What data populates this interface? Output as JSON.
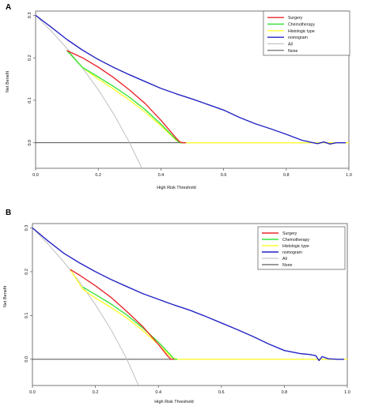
{
  "figure": {
    "colors": {
      "Surgery": "#e8272d",
      "Chemotherapy": "#39e33a",
      "Histologic type": "#ffff33",
      "nomogram": "#2424c4",
      "All": "#b9b9b9",
      "None": "#333333"
    }
  },
  "chart_data": [
    {
      "panel_label": "A",
      "type": "line",
      "xlabel": "High Risk Threshold",
      "ylabel": "Net Benefit",
      "xlim": [
        0,
        1
      ],
      "ylim": [
        -0.06,
        0.31
      ],
      "xticks": [
        "0.0",
        "0.2",
        "0.4",
        "0.6",
        "0.8",
        "1.0"
      ],
      "yticks": [
        "0.0",
        "0.1",
        "0.2",
        "0.3"
      ],
      "legend_position": "top-right",
      "grid": false,
      "series": [
        {
          "name": "Surgery",
          "color": "#e8272d",
          "x": [
            0.1,
            0.15,
            0.2,
            0.25,
            0.3,
            0.35,
            0.4,
            0.43,
            0.45,
            0.46,
            0.47,
            0.48
          ],
          "y": [
            0.217,
            0.2,
            0.178,
            0.153,
            0.124,
            0.092,
            0.053,
            0.027,
            0.01,
            0.002,
            0.0,
            0.0
          ]
        },
        {
          "name": "Chemotherapy",
          "color": "#39e33a",
          "x": [
            0.1,
            0.15,
            0.2,
            0.25,
            0.3,
            0.35,
            0.4,
            0.44,
            0.46,
            0.47,
            0.48
          ],
          "y": [
            0.217,
            0.177,
            0.155,
            0.132,
            0.107,
            0.078,
            0.044,
            0.014,
            0.0,
            0.0,
            0.0
          ]
        },
        {
          "name": "Histologic type",
          "color": "#ffff33",
          "x": [
            0.1,
            0.15,
            0.2,
            0.25,
            0.3,
            0.35,
            0.4,
            0.45,
            0.47,
            0.6,
            0.8,
            1.0
          ],
          "y": [
            0.217,
            0.177,
            0.15,
            0.126,
            0.1,
            0.072,
            0.04,
            0.005,
            0.0,
            0.0,
            0.0,
            0.0
          ]
        },
        {
          "name": "nomogram",
          "color": "#2424c4",
          "x": [
            0.0,
            0.05,
            0.1,
            0.15,
            0.2,
            0.25,
            0.3,
            0.35,
            0.4,
            0.45,
            0.5,
            0.55,
            0.6,
            0.65,
            0.7,
            0.75,
            0.8,
            0.85,
            0.88,
            0.9,
            0.92,
            0.94,
            0.96,
            0.99
          ],
          "y": [
            0.3,
            0.272,
            0.243,
            0.218,
            0.196,
            0.177,
            0.16,
            0.144,
            0.128,
            0.115,
            0.103,
            0.09,
            0.077,
            0.06,
            0.045,
            0.033,
            0.02,
            0.006,
            0.001,
            -0.002,
            0.002,
            -0.003,
            0.0,
            0.0
          ]
        },
        {
          "name": "All",
          "color": "#b9b9b9",
          "x": [
            0.0,
            0.05,
            0.1,
            0.15,
            0.2,
            0.25,
            0.3,
            0.35
          ],
          "y": [
            0.3,
            0.263,
            0.222,
            0.176,
            0.125,
            0.067,
            0.0,
            -0.077
          ]
        },
        {
          "name": "None",
          "color": "#333333",
          "x": [
            0.0,
            1.0
          ],
          "y": [
            0.0,
            0.0
          ]
        }
      ]
    },
    {
      "panel_label": "B",
      "type": "line",
      "xlabel": "High Risk Threshold",
      "ylabel": "Net Benefit",
      "xlim": [
        0,
        1
      ],
      "ylim": [
        -0.06,
        0.31
      ],
      "xticks": [
        "0.0",
        "0.2",
        "0.4",
        "0.6",
        "0.8",
        "1.0"
      ],
      "yticks": [
        "0.0",
        "0.1",
        "0.2",
        "0.3"
      ],
      "legend_position": "top-right",
      "grid": false,
      "series": [
        {
          "name": "Surgery",
          "color": "#e8272d",
          "x": [
            0.12,
            0.15,
            0.2,
            0.25,
            0.3,
            0.35,
            0.4,
            0.43,
            0.44,
            0.45
          ],
          "y": [
            0.205,
            0.192,
            0.168,
            0.141,
            0.109,
            0.075,
            0.034,
            0.007,
            0.0,
            0.0
          ]
        },
        {
          "name": "Chemotherapy",
          "color": "#39e33a",
          "x": [
            0.16,
            0.2,
            0.25,
            0.3,
            0.35,
            0.4,
            0.44,
            0.45,
            0.46
          ],
          "y": [
            0.165,
            0.148,
            0.126,
            0.101,
            0.072,
            0.039,
            0.009,
            0.0,
            0.0
          ]
        },
        {
          "name": "Histologic type",
          "color": "#ffff33",
          "x": [
            0.12,
            0.16,
            0.2,
            0.25,
            0.3,
            0.35,
            0.4,
            0.44,
            0.46,
            0.6,
            0.8,
            1.0
          ],
          "y": [
            0.205,
            0.16,
            0.14,
            0.118,
            0.094,
            0.066,
            0.034,
            0.005,
            0.0,
            0.0,
            0.0,
            0.0
          ]
        },
        {
          "name": "nomogram",
          "color": "#2424c4",
          "x": [
            0.0,
            0.05,
            0.1,
            0.15,
            0.2,
            0.25,
            0.3,
            0.35,
            0.4,
            0.45,
            0.5,
            0.55,
            0.6,
            0.65,
            0.7,
            0.75,
            0.8,
            0.85,
            0.88,
            0.9,
            0.91,
            0.92,
            0.94,
            0.97,
            0.99
          ],
          "y": [
            0.3,
            0.27,
            0.242,
            0.22,
            0.2,
            0.182,
            0.166,
            0.15,
            0.137,
            0.124,
            0.112,
            0.098,
            0.083,
            0.068,
            0.052,
            0.035,
            0.02,
            0.013,
            0.011,
            0.008,
            -0.003,
            0.006,
            0.001,
            0.0,
            0.0
          ]
        },
        {
          "name": "All",
          "color": "#b9b9b9",
          "x": [
            0.0,
            0.05,
            0.1,
            0.15,
            0.2,
            0.25,
            0.3,
            0.34
          ],
          "y": [
            0.3,
            0.263,
            0.222,
            0.176,
            0.125,
            0.067,
            0.0,
            -0.065
          ]
        },
        {
          "name": "None",
          "color": "#333333",
          "x": [
            0.0,
            1.0
          ],
          "y": [
            0.0,
            0.0
          ]
        }
      ]
    }
  ]
}
